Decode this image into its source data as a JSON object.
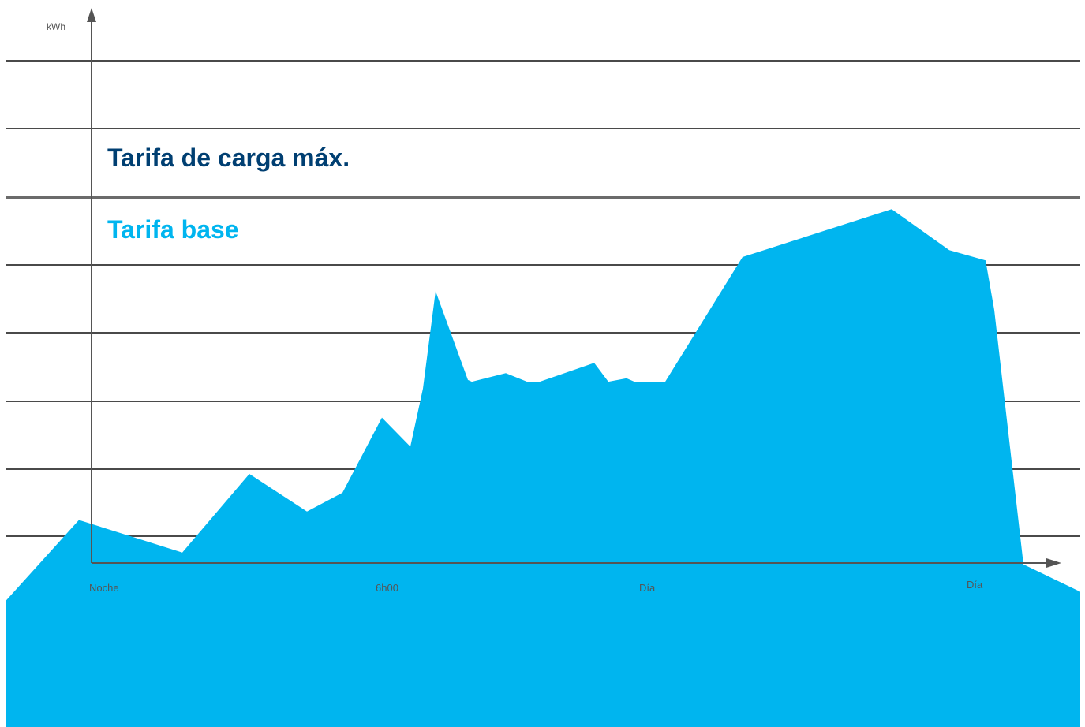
{
  "chart_data": {
    "type": "area",
    "ylabel": "kWh",
    "xlabel": "",
    "x_tick_labels": [
      "Noche",
      "6h00",
      "Día",
      "Día"
    ],
    "threshold_level": 0.4,
    "annotations": {
      "above_threshold": "Tarifa de carga máx.",
      "below_threshold": "Tarifa base"
    },
    "grid": true,
    "gridline_count": 8,
    "series": [
      {
        "values": [
          0.01,
          0.48,
          0.29,
          0.75,
          0.53,
          0.64,
          1.08,
          0.91,
          1.25,
          1.82,
          1.3,
          1.29,
          1.34,
          1.29,
          1.29,
          1.4,
          1.29,
          1.31,
          1.29,
          1.29,
          2.02,
          2.3,
          2.06,
          2.0,
          1.71,
          0.22,
          0.06
        ]
      }
    ],
    "colors": {
      "base": "#00b5ef",
      "peak": "#003f72",
      "threshold_line": "#6b6b6b",
      "grid": "#4a4a4a",
      "axis": "#555555"
    }
  }
}
